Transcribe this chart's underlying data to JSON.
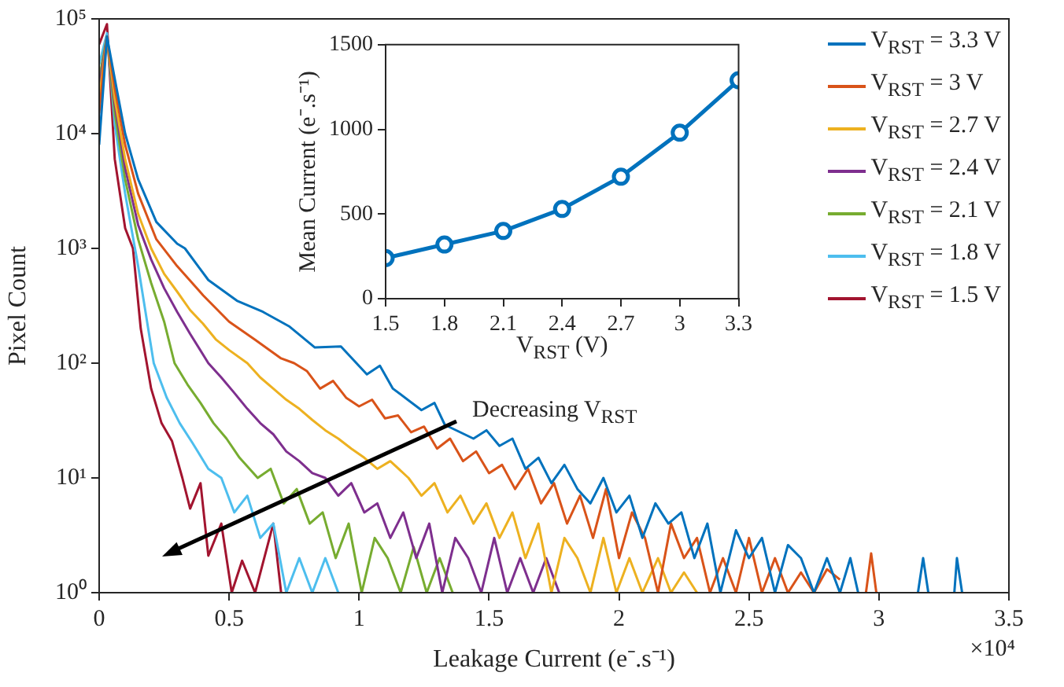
{
  "chart_data": [
    {
      "type": "line",
      "xlabel": "Leakage Current (e⁻.s⁻¹)",
      "ylabel": "Pixel Count",
      "log": "y",
      "grid": false,
      "legend": "top right",
      "xlim": [
        0,
        3.5
      ],
      "xticks": [
        0,
        0.5,
        1,
        1.5,
        2,
        2.5,
        3,
        3.5
      ],
      "ylim": [
        1,
        100000
      ],
      "yticks": [
        {
          "value": 1,
          "label": "10⁰"
        },
        {
          "value": 10,
          "label": "10¹"
        },
        {
          "value": 100,
          "label": "10²"
        },
        {
          "value": 1000,
          "label": "10³"
        },
        {
          "value": 10000,
          "label": "10⁴"
        },
        {
          "value": 100000,
          "label": "10⁵"
        }
      ],
      "annotations": [
        "×10⁴",
        "Decreasing V$_{RST}$"
      ],
      "series": [
        {
          "name": "V$_{RST}$ = 3.3 V",
          "color": "#0072bd",
          "x": [
            0,
            0.03,
            0.06,
            0.1,
            0.15,
            0.22,
            0.3,
            0.33,
            0.42,
            0.53,
            0.63,
            0.73,
            0.83,
            0.93,
            1.03,
            1.08,
            1.13,
            1.24,
            1.29,
            1.33,
            1.44,
            1.49,
            1.54,
            1.59,
            1.64,
            1.69,
            1.74,
            1.79,
            1.84,
            1.89,
            1.94,
            1.99,
            2.04,
            2.09,
            2.14,
            2.19,
            2.24,
            2.29,
            2.34,
            2.39,
            2.45,
            2.5,
            2.55,
            2.6,
            2.65,
            2.7,
            2.75,
            2.8,
            2.85,
            2.89,
            2.92,
            3,
            3.15,
            3.17,
            3.19,
            3.25,
            3.29,
            3.3,
            3.32
          ],
          "values": [
            8000,
            70000,
            30000,
            10000,
            4000,
            1700,
            1100,
            1000,
            530,
            350,
            280,
            210,
            137,
            140,
            80,
            95,
            60,
            39,
            45,
            29,
            22,
            26,
            19,
            22,
            12,
            15,
            9,
            13,
            8,
            6,
            10,
            5,
            7,
            3,
            6,
            4,
            5,
            2,
            4,
            1,
            3.5,
            2,
            3,
            1,
            2.6,
            2,
            1,
            2,
            1,
            2,
            1,
            null,
            1,
            2,
            1,
            null,
            1,
            2,
            1
          ]
        },
        {
          "name": "V$_{RST}$ = 3 V",
          "color": "#d95319",
          "x": [
            0,
            0.03,
            0.06,
            0.1,
            0.15,
            0.22,
            0.3,
            0.4,
            0.5,
            0.6,
            0.7,
            0.75,
            0.8,
            0.85,
            0.9,
            0.95,
            1,
            1.05,
            1.1,
            1.15,
            1.2,
            1.25,
            1.3,
            1.35,
            1.4,
            1.45,
            1.5,
            1.55,
            1.6,
            1.65,
            1.7,
            1.75,
            1.8,
            1.85,
            1.9,
            1.95,
            2,
            2.05,
            2.1,
            2.15,
            2.2,
            2.25,
            2.3,
            2.35,
            2.4,
            2.45,
            2.5,
            2.55,
            2.6,
            2.65,
            2.7,
            2.75,
            2.8,
            2.85,
            2.9,
            2.95,
            2.97,
            2.99
          ],
          "values": [
            15000,
            70000,
            25000,
            8000,
            3000,
            1200,
            700,
            390,
            230,
            160,
            110,
            100,
            85,
            60,
            70,
            50,
            42,
            48,
            33,
            35,
            25,
            28,
            18,
            22,
            14,
            17,
            11,
            13,
            8,
            12,
            6,
            9,
            4,
            7,
            3,
            8,
            2,
            5,
            3,
            1,
            4,
            2,
            3,
            1,
            2,
            1,
            3,
            1,
            2,
            1,
            1.5,
            1,
            1.6,
            1.3,
            null,
            1,
            2.2,
            1
          ]
        },
        {
          "name": "V$_{RST}$ = 2.7 V",
          "color": "#edb120",
          "x": [
            0,
            0.03,
            0.06,
            0.1,
            0.15,
            0.2,
            0.25,
            0.3,
            0.35,
            0.4,
            0.45,
            0.5,
            0.57,
            0.62,
            0.67,
            0.72,
            0.77,
            0.82,
            0.87,
            0.92,
            0.97,
            1.02,
            1.07,
            1.12,
            1.19,
            1.24,
            1.29,
            1.34,
            1.39,
            1.44,
            1.49,
            1.54,
            1.59,
            1.64,
            1.69,
            1.74,
            1.79,
            1.84,
            1.89,
            1.94,
            1.99,
            2.04,
            2.09,
            2.15,
            2.2,
            2.25,
            2.3
          ],
          "values": [
            20000,
            70000,
            20000,
            6000,
            2000,
            1000,
            600,
            420,
            290,
            220,
            160,
            130,
            100,
            75,
            60,
            48,
            40,
            32,
            26,
            22,
            18,
            15,
            12,
            14,
            10,
            7,
            9,
            5,
            7,
            4,
            6,
            3,
            5,
            2,
            4,
            1,
            3,
            2,
            1,
            3,
            1,
            2,
            1,
            2,
            1,
            1.5,
            1
          ]
        },
        {
          "name": "V$_{RST}$ = 2.4 V",
          "color": "#7e2f8e",
          "x": [
            0,
            0.03,
            0.06,
            0.1,
            0.15,
            0.2,
            0.25,
            0.3,
            0.35,
            0.42,
            0.47,
            0.52,
            0.57,
            0.62,
            0.67,
            0.72,
            0.77,
            0.82,
            0.87,
            0.92,
            0.97,
            1.02,
            1.07,
            1.12,
            1.17,
            1.22,
            1.27,
            1.32,
            1.37,
            1.42,
            1.47,
            1.52,
            1.57,
            1.62,
            1.67,
            1.72,
            1.77
          ],
          "values": [
            25000,
            70000,
            18000,
            5000,
            1600,
            800,
            450,
            280,
            180,
            100,
            75,
            55,
            40,
            30,
            24,
            17,
            14,
            11,
            10,
            7,
            9,
            5,
            6,
            3,
            5,
            2,
            4,
            1,
            3,
            2,
            1,
            3,
            1,
            2,
            1,
            2,
            1
          ]
        },
        {
          "name": "V$_{RST}$ = 2.1 V",
          "color": "#77ac30",
          "x": [
            0,
            0.03,
            0.06,
            0.1,
            0.15,
            0.2,
            0.25,
            0.29,
            0.34,
            0.39,
            0.44,
            0.49,
            0.54,
            0.61,
            0.66,
            0.71,
            0.76,
            0.81,
            0.86,
            0.91,
            0.96,
            1.01,
            1.06,
            1.11,
            1.16,
            1.21,
            1.26,
            1.31,
            1.36
          ],
          "values": [
            30000,
            70000,
            15000,
            4000,
            1200,
            500,
            230,
            100,
            65,
            45,
            30,
            22,
            15,
            10,
            12,
            6,
            8,
            4,
            5,
            2,
            4,
            1,
            3,
            2,
            1,
            2.5,
            1,
            2,
            1
          ]
        },
        {
          "name": "V$_{RST}$ = 1.8 V",
          "color": "#4dbeee",
          "x": [
            0,
            0.03,
            0.06,
            0.1,
            0.15,
            0.21,
            0.26,
            0.31,
            0.36,
            0.42,
            0.47,
            0.52,
            0.57,
            0.62,
            0.67,
            0.72,
            0.77,
            0.82,
            0.87,
            0.92
          ],
          "values": [
            40000,
            75000,
            12000,
            3000,
            700,
            100,
            50,
            30,
            20,
            12,
            10,
            5,
            7,
            3,
            4,
            1,
            2,
            1,
            2,
            1
          ]
        },
        {
          "name": "V$_{RST}$ = 1.5 V",
          "color": "#a2142f",
          "x": [
            0,
            0.03,
            0.06,
            0.1,
            0.13,
            0.16,
            0.2,
            0.24,
            0.28,
            0.32,
            0.35,
            0.39,
            0.42,
            0.47,
            0.51,
            0.55,
            0.6,
            0.67,
            0.7
          ],
          "values": [
            60000,
            90000,
            6000,
            1500,
            1000,
            200,
            60,
            30,
            21,
            10,
            5.4,
            9,
            2.1,
            4,
            1,
            1.9,
            1,
            4,
            1
          ]
        }
      ]
    },
    {
      "type": "line",
      "xlabel": "V$_{RST}$ (V)",
      "ylabel": "Mean Current (e⁻.s⁻¹)",
      "grid": false,
      "marker": "circle",
      "xlim": [
        1.5,
        3.3
      ],
      "xticks": [
        1.5,
        1.8,
        2.1,
        2.4,
        2.7,
        3,
        3.3
      ],
      "ylim": [
        0,
        1500
      ],
      "yticks": [
        0,
        500,
        1000,
        1500
      ],
      "series": [
        {
          "color": "#0072bd",
          "x": [
            1.5,
            1.8,
            2.1,
            2.4,
            2.7,
            3,
            3.3
          ],
          "values": [
            240,
            320,
            400,
            530,
            720,
            980,
            1290
          ]
        }
      ]
    }
  ]
}
